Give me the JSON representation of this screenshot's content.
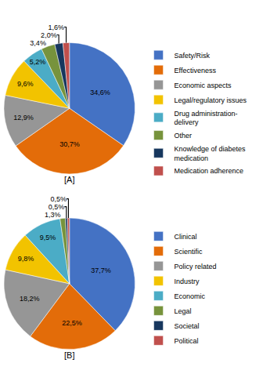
{
  "chart_data": [
    {
      "type": "pie",
      "title": "[A]",
      "categories": [
        "Safety/Risk",
        "Effectiveness",
        "Economic aspects",
        "Legal/regulatory issues",
        "Drug administration-\ndelivery",
        "Other",
        "Knowledge of diabetes\nmedication",
        "Medication adherence"
      ],
      "values": [
        34.6,
        30.7,
        12.9,
        9.6,
        5.2,
        3.4,
        2.0,
        1.6
      ],
      "value_labels": [
        "34,6%",
        "30,7%",
        "12,9%",
        "9,6%",
        "5,2%",
        "3,4%",
        "2,0%",
        "1,6%"
      ],
      "colors": [
        "#4472C4",
        "#E36C09",
        "#969696",
        "#F2C300",
        "#4BACC6",
        "#77933C",
        "#17375E",
        "#C0504D"
      ],
      "data_labels": true,
      "legend": "right"
    },
    {
      "type": "pie",
      "title": "[B]",
      "categories": [
        "Clinical",
        "Scientific",
        "Policy related",
        "Industry",
        "Economic",
        "Legal",
        "Societal",
        "Political"
      ],
      "values": [
        37.7,
        22.5,
        18.2,
        9.8,
        9.5,
        1.3,
        0.5,
        0.5
      ],
      "value_labels": [
        "37,7%",
        "22,5%",
        "18,2%",
        "9,8%",
        "9,5%",
        "1,3%",
        "0,5%",
        "0,5%"
      ],
      "colors": [
        "#4472C4",
        "#E36C09",
        "#969696",
        "#F2C300",
        "#4BACC6",
        "#77933C",
        "#17375E",
        "#C0504D"
      ],
      "data_labels": true,
      "legend": "right"
    }
  ]
}
